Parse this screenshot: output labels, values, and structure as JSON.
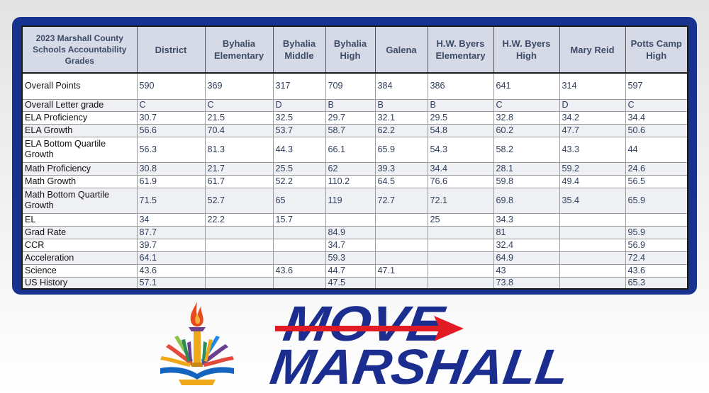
{
  "table": {
    "header": [
      "2023 Marshall County Schools Accountability Grades",
      "District",
      "Byhalia Elementary",
      "Byhalia Middle",
      "Byhalia High",
      "Galena",
      "H.W. Byers Elementary",
      "H.W. Byers High",
      "Mary Reid",
      "Potts Camp High"
    ],
    "rows": [
      [
        "Overall Points",
        "590",
        "369",
        "317",
        "709",
        "384",
        "386",
        "641",
        "314",
        "597"
      ],
      [
        "Overall Letter grade",
        "C",
        "C",
        "D",
        "B",
        "B",
        "B",
        "C",
        "D",
        "C"
      ],
      [
        "ELA Proficiency",
        "30.7",
        "21.5",
        "32.5",
        "29.7",
        "32.1",
        "29.5",
        "32.8",
        "34.2",
        "34.4"
      ],
      [
        "ELA Growth",
        "56.6",
        "70.4",
        "53.7",
        "58.7",
        "62.2",
        "54.8",
        "60.2",
        "47.7",
        "50.6"
      ],
      [
        "ELA Bottom Quartile Growth",
        "56.3",
        "81.3",
        "44.3",
        "66.1",
        "65.9",
        "54.3",
        "58.2",
        "43.3",
        "44"
      ],
      [
        "Math Proficiency",
        "30.8",
        "21.7",
        "25.5",
        "62",
        "39.3",
        "34.4",
        "28.1",
        "59.2",
        "24.6"
      ],
      [
        "Math Growth",
        "61.9",
        "61.7",
        "52.2",
        "110.2",
        "64.5",
        "76.6",
        "59.8",
        "49.4",
        "56.5"
      ],
      [
        "Math Bottom Quartile Growth",
        "71.5",
        "52.7",
        "65",
        "119",
        "72.7",
        "72.1",
        "69.8",
        "35.4",
        "65.9"
      ],
      [
        "EL",
        "34",
        "22.2",
        "15.7",
        "",
        "",
        "25",
        "34.3",
        "",
        ""
      ],
      [
        "Grad Rate",
        "87.7",
        "",
        "",
        "84.9",
        "",
        "",
        "81",
        "",
        "95.9"
      ],
      [
        "CCR",
        "39.7",
        "",
        "",
        "34.7",
        "",
        "",
        "32.4",
        "",
        "56.9"
      ],
      [
        "Acceleration",
        "64.1",
        "",
        "",
        "59.3",
        "",
        "",
        "64.9",
        "",
        "72.4"
      ],
      [
        "Science",
        "43.6",
        "",
        "43.6",
        "44.7",
        "47.1",
        "",
        "43",
        "",
        "43.6"
      ],
      [
        "US History",
        "57.1",
        "",
        "",
        "47.5",
        "",
        "",
        "73.8",
        "",
        "65.3"
      ]
    ]
  },
  "branding": {
    "line1": "MOVE",
    "line2": "MARSHALL",
    "logo_icon": "torch-book-icon",
    "arrow_icon": "red-arrow-icon",
    "navy": "#1b2e8f",
    "red": "#e01b24",
    "frame_blue": "#18338f"
  }
}
